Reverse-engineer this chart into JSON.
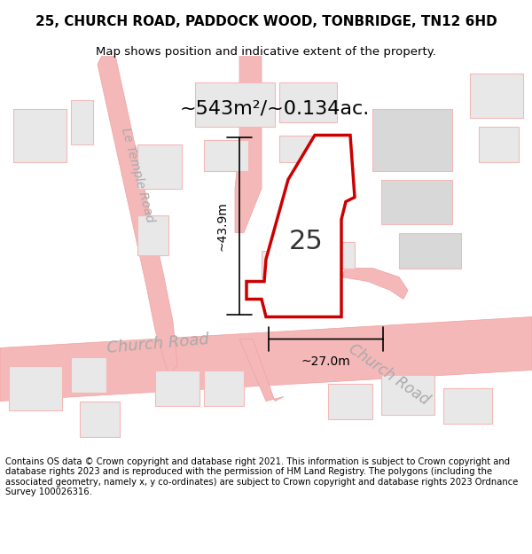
{
  "title": "25, CHURCH ROAD, PADDOCK WOOD, TONBRIDGE, TN12 6HD",
  "subtitle": "Map shows position and indicative extent of the property.",
  "area_text": "~543m²/~0.134ac.",
  "dim_height": "~43.9m",
  "dim_width": "~27.0m",
  "property_number": "25",
  "footer": "Contains OS data © Crown copyright and database right 2021. This information is subject to Crown copyright and database rights 2023 and is reproduced with the permission of HM Land Registry. The polygons (including the associated geometry, namely x, y co-ordinates) are subject to Crown copyright and database rights 2023 Ordnance Survey 100026316.",
  "bg_color": "#ffffff",
  "map_bg": "#ffffff",
  "road_color": "#f5b8b8",
  "road_outline": "#f0a0a0",
  "building_fill": "#e8e8e8",
  "building_stroke": "#f5b8b8",
  "property_fill": "#ffffff",
  "property_stroke": "#cc0000",
  "dim_color": "#000000",
  "text_gray": "#aaaaaa",
  "title_color": "#000000",
  "footer_color": "#000000"
}
